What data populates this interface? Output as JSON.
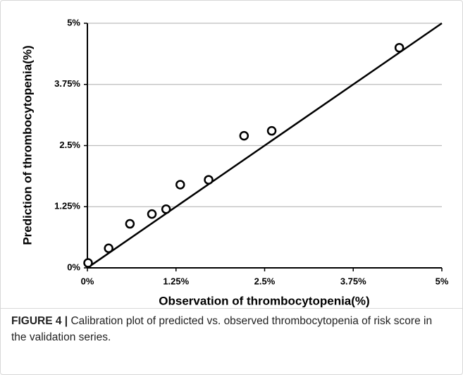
{
  "chart_data": {
    "type": "scatter",
    "x_label": "Observation of thrombocytopenia(%)",
    "y_label": "Prediction of thrombocytopenia(%)",
    "x": [
      0.01,
      0.3,
      0.6,
      0.91,
      1.11,
      1.31,
      1.71,
      2.21,
      2.6,
      4.4
    ],
    "y": [
      0.1,
      0.4,
      0.9,
      1.1,
      1.2,
      1.7,
      1.8,
      2.7,
      2.8,
      4.5
    ],
    "line": {
      "x": [
        0,
        5
      ],
      "y": [
        0,
        5
      ],
      "color": "#000000"
    },
    "marker_color": "#000000",
    "xlim": [
      0,
      5
    ],
    "ylim": [
      0,
      5
    ],
    "xticks": [
      {
        "value": 0,
        "label": "0%"
      },
      {
        "value": 1.25,
        "label": "1.25%"
      },
      {
        "value": 2.5,
        "label": "2.5%"
      },
      {
        "value": 3.75,
        "label": "3.75%"
      },
      {
        "value": 5,
        "label": "5%"
      }
    ],
    "yticks": [
      {
        "value": 0,
        "label": "0%"
      },
      {
        "value": 1.25,
        "label": "1.25%"
      },
      {
        "value": 2.5,
        "label": "2.5%"
      },
      {
        "value": 3.75,
        "label": "3.75%"
      },
      {
        "value": 5,
        "label": "5%"
      }
    ],
    "grid": true
  },
  "caption": {
    "label": "FIGURE 4 |",
    "text": "Calibration plot of predicted vs. observed thrombocytopenia of risk score in the validation series."
  }
}
